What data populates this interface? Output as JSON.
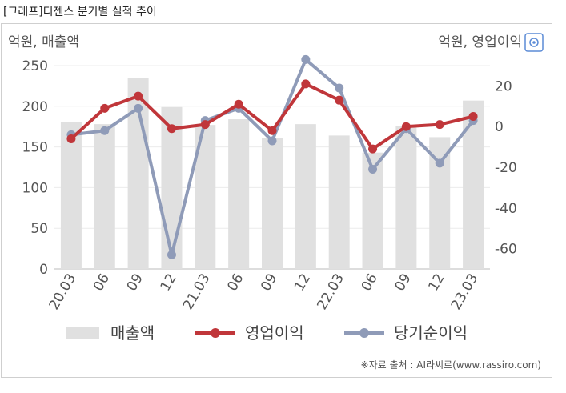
{
  "caption": "[그래프]디젠스 분기별 실적 추이",
  "chart_data": {
    "type": "bar+line",
    "categories": [
      "20.03",
      "06",
      "09",
      "12",
      "21.03",
      "06",
      "09",
      "12",
      "22.03",
      "06",
      "09",
      "12",
      "23.03"
    ],
    "left_axis": {
      "label": "억원, 매출액",
      "min": 0,
      "max": 250,
      "ticks": [
        0,
        50,
        100,
        150,
        200,
        250
      ]
    },
    "right_axis": {
      "label": "억원, 영업이익",
      "min": -70,
      "max": 30,
      "ticks": [
        -60,
        -40,
        -20,
        0,
        20
      ]
    },
    "series": [
      {
        "name": "매출액",
        "type": "bar",
        "axis": "left",
        "color": "#e0e0e0",
        "values": [
          181,
          178,
          235,
          199,
          177,
          184,
          161,
          178,
          164,
          143,
          176,
          162,
          207
        ]
      },
      {
        "name": "영업이익",
        "type": "line",
        "axis": "right",
        "color": "#c0363a",
        "values": [
          -6,
          9,
          15,
          -1,
          1,
          11,
          -2,
          21,
          13,
          -11,
          0,
          1,
          5
        ]
      },
      {
        "name": "당기순이익",
        "type": "line",
        "axis": "right",
        "color": "#8f9bb8",
        "values": [
          -4,
          -2,
          9,
          -63,
          3,
          9,
          -7,
          33,
          19,
          -21,
          -1,
          -18,
          3
        ]
      }
    ],
    "grid": true,
    "legend": "bottom",
    "source": "※자료 출처 : AI라씨로(www.rassiro.com)"
  }
}
